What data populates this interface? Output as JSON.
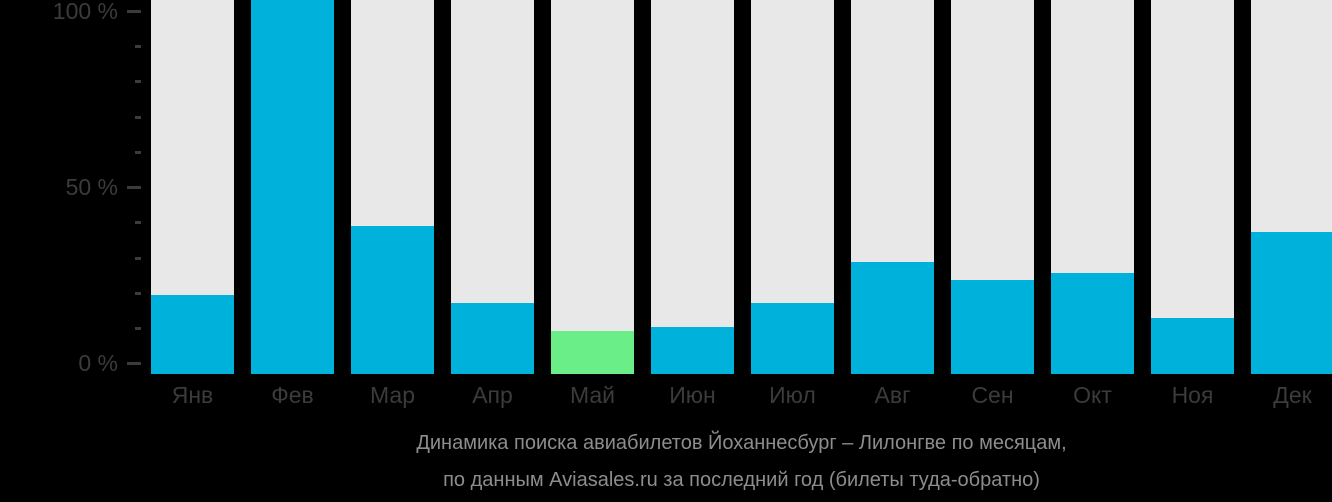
{
  "chart_data": {
    "type": "bar",
    "title": "Динамика поиска авиабилетов Йоханнесбург – Лилонгве по месяцам,",
    "subtitle": "по данным Aviasales.ru за последний год (билеты туда-обратно)",
    "categories": [
      "Янв",
      "Фев",
      "Мар",
      "Апр",
      "Май",
      "Июн",
      "Июл",
      "Авг",
      "Сен",
      "Окт",
      "Ноя",
      "Дек"
    ],
    "values": [
      21,
      100,
      39.5,
      19,
      11.5,
      12.5,
      19,
      30,
      25,
      27,
      15,
      38
    ],
    "unit": "%",
    "highlight_index": 4,
    "highlight_category": "Май",
    "xlabel": "",
    "ylabel": "",
    "ylim": [
      0,
      100
    ],
    "yticks": [
      {
        "value": 0,
        "label": "0 %"
      },
      {
        "value": 50,
        "label": "50 %"
      },
      {
        "value": 100,
        "label": "100 %"
      }
    ],
    "minor_tick_step": 10,
    "grid": false,
    "legend": null,
    "layout_hint": "full-height light track behind each bar represents 100%; bars rise from baseline; axis ticks on left only",
    "colors": {
      "bar": "#00b1dc",
      "highlight_bar": "#6aee87",
      "track": "#e8e8e9",
      "background": "#000000",
      "axis_text": "#3b3b3b",
      "caption_text": "#8d8d8d"
    }
  }
}
